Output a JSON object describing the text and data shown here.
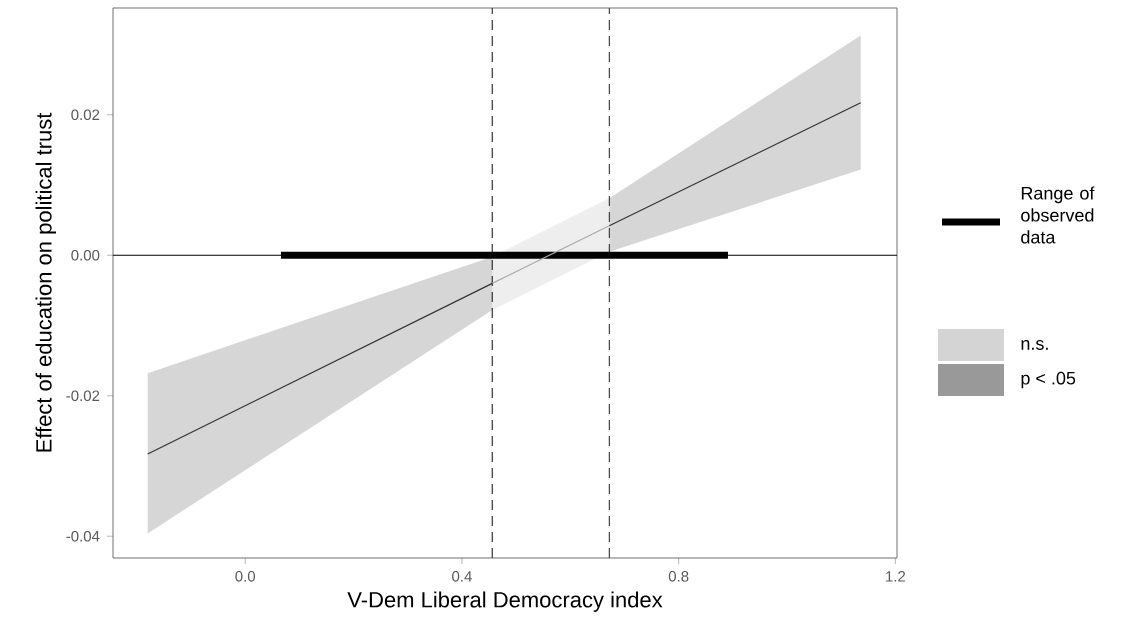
{
  "chart_data": {
    "type": "line",
    "xlabel": "V-Dem Liberal Democracy index",
    "ylabel": "Effect of education on political trust",
    "xlim": [
      -0.244,
      1.203
    ],
    "ylim": [
      -0.0431,
      0.0352
    ],
    "xticks": [
      {
        "value": 0,
        "label": "0.0"
      },
      {
        "value": 0.4,
        "label": "0.4"
      },
      {
        "value": 0.8,
        "label": "0.8"
      },
      {
        "value": 1.2,
        "label": "1.2"
      }
    ],
    "yticks": [
      {
        "value": -0.04,
        "label": "-0.04"
      },
      {
        "value": -0.02,
        "label": "-0.02"
      },
      {
        "value": 0,
        "label": "0.00"
      },
      {
        "value": 0.02,
        "label": "0.02"
      }
    ],
    "grid": false,
    "legend": "right",
    "ref_lines": [
      {
        "axis": "y",
        "value": 0,
        "color": "#000000",
        "line_style": "solid"
      },
      {
        "axis": "x",
        "value": 0.456,
        "color": "#333333",
        "line_style": "dashed"
      },
      {
        "axis": "x",
        "value": 0.672,
        "color": "#333333",
        "line_style": "dashed"
      }
    ],
    "series": [
      {
        "name": "Range of observed data",
        "color": "#000000",
        "x": [
          0.066,
          0.891
        ],
        "values": [
          0,
          0
        ]
      },
      {
        "name": "n.s.",
        "color": "#aaaaaa",
        "x": [
          0.456,
          0.672
        ],
        "values": [
          -0.004,
          0.0042
        ],
        "lower": [
          -0.0078,
          0.0005
        ],
        "upper": [
          -0.0002,
          0.0081
        ]
      },
      {
        "name": "p < .05",
        "color": "#333333",
        "x": [
          -0.18,
          0.456,
          0.564,
          0.672,
          1.136
        ],
        "values": [
          -0.0283,
          -0.004,
          null,
          0.0042,
          0.0217
        ],
        "lower": [
          -0.0396,
          -0.0078,
          null,
          0.0005,
          0.0122
        ],
        "upper": [
          -0.0168,
          -0.0002,
          null,
          0.0081,
          0.0313
        ]
      }
    ]
  }
}
